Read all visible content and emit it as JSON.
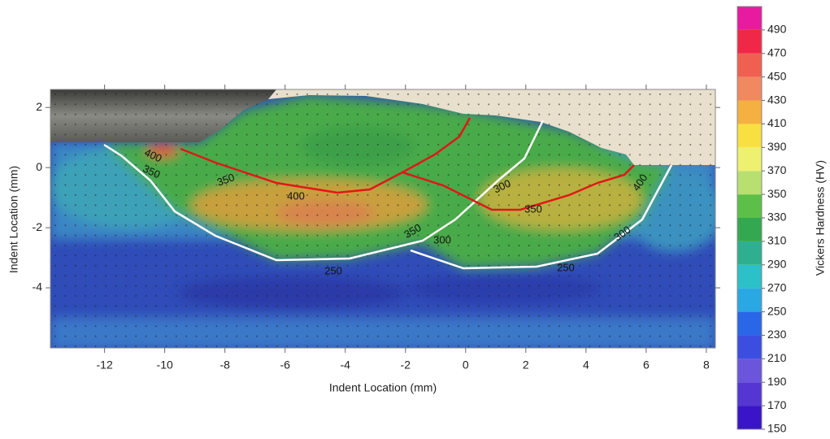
{
  "chart_data": {
    "type": "contour",
    "xlabel": "Indent Location (mm)",
    "ylabel": "Indent Location (mm)",
    "xlim": [
      -13.8,
      8.3
    ],
    "ylim": [
      -6,
      2.6
    ],
    "xticks": [
      -12,
      -10,
      -8,
      -6,
      -4,
      -2,
      0,
      2,
      4,
      6,
      8
    ],
    "yticks": [
      -4,
      -2,
      0,
      2
    ],
    "contour_labels": [
      400,
      350,
      350,
      400,
      350,
      300,
      250,
      300,
      350,
      250,
      300,
      400
    ],
    "colorbar": {
      "label": "Vickers Hardness (HV)",
      "clim": [
        150,
        510
      ],
      "ticks": [
        150,
        170,
        190,
        210,
        230,
        250,
        270,
        290,
        310,
        330,
        350,
        370,
        390,
        410,
        430,
        450,
        470,
        490
      ],
      "colors": [
        "#3a14c8",
        "#5536d2",
        "#6a55dc",
        "#3c4ee0",
        "#2a66e8",
        "#2aa8e4",
        "#2cc0c8",
        "#2eb090",
        "#34a850",
        "#5cc048",
        "#b8e070",
        "#eef070",
        "#f8e040",
        "#f4b040",
        "#f08860",
        "#f06050",
        "#f02848",
        "#e81aa0"
      ]
    }
  }
}
